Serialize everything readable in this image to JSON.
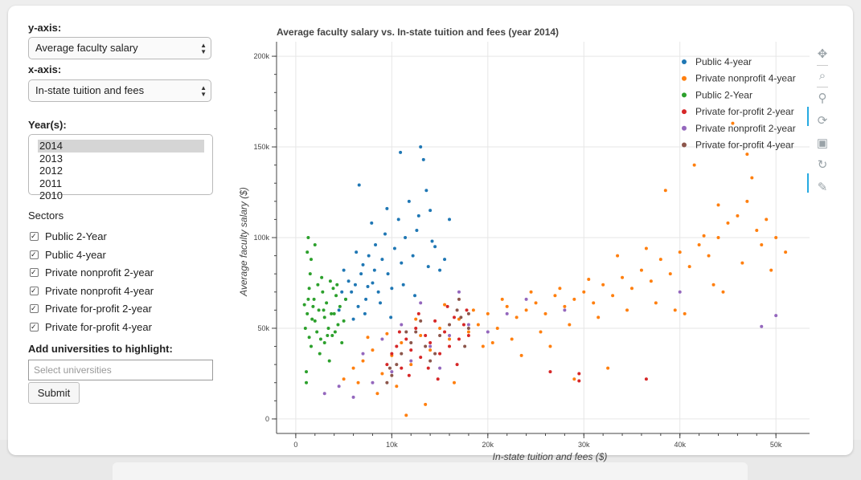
{
  "controls": {
    "yaxis_label": "y-axis:",
    "yaxis_value": "Average faculty salary",
    "xaxis_label": "x-axis:",
    "xaxis_value": "In-state tuition and fees",
    "years_label": "Year(s):",
    "years": [
      "2014",
      "2013",
      "2012",
      "2011",
      "2010"
    ],
    "years_selected": "2014",
    "sectors_label": "Sectors",
    "sectors": [
      "Public 2-Year",
      "Public 4-year",
      "Private nonprofit 2-year",
      "Private nonprofit 4-year",
      "Private for-profit 2-year",
      "Private for-profit 4-year"
    ],
    "highlight_label": "Add universities to highlight:",
    "highlight_placeholder": "Select universities",
    "submit_label": "Submit"
  },
  "toolbar": {
    "icons": [
      "pan-icon",
      "box-zoom-icon",
      "wheel-zoom-icon",
      "lasso-select-icon",
      "save-icon",
      "reset-icon",
      "hover-icon"
    ]
  },
  "chart_data": {
    "type": "scatter",
    "title": "Average faculty salary vs. In-state tuition and fees (year 2014)",
    "xlabel": "In-state tuition and fees ($)",
    "ylabel": "Average faculty salary ($)",
    "xlim": [
      -2000,
      53500
    ],
    "ylim": [
      -8000,
      208000
    ],
    "x_ticks": [
      0,
      10000,
      20000,
      30000,
      40000,
      50000
    ],
    "x_tick_labels": [
      "0",
      "10k",
      "20k",
      "30k",
      "40k",
      "50k"
    ],
    "y_ticks": [
      0,
      50000,
      100000,
      150000,
      200000
    ],
    "y_tick_labels": [
      "0",
      "50k",
      "100k",
      "150k",
      "200k"
    ],
    "grid": true,
    "legend_position": "top-right",
    "series": [
      {
        "name": "Public 4-year",
        "color": "#1f77b4",
        "points": [
          [
            4500,
            60000
          ],
          [
            5200,
            66000
          ],
          [
            5800,
            70000
          ],
          [
            6200,
            74000
          ],
          [
            6500,
            62000
          ],
          [
            6800,
            80000
          ],
          [
            7000,
            85000
          ],
          [
            7300,
            66000
          ],
          [
            7600,
            90000
          ],
          [
            8000,
            75000
          ],
          [
            8300,
            96000
          ],
          [
            8600,
            70000
          ],
          [
            9000,
            88000
          ],
          [
            9300,
            102000
          ],
          [
            9600,
            80000
          ],
          [
            10000,
            72000
          ],
          [
            10300,
            94000
          ],
          [
            10700,
            110000
          ],
          [
            11000,
            86000
          ],
          [
            11400,
            100000
          ],
          [
            11800,
            120000
          ],
          [
            12200,
            90000
          ],
          [
            12600,
            104000
          ],
          [
            13000,
            150000
          ],
          [
            13300,
            143000
          ],
          [
            13600,
            126000
          ],
          [
            14000,
            115000
          ],
          [
            14500,
            95000
          ],
          [
            15000,
            82000
          ],
          [
            6000,
            55000
          ],
          [
            7200,
            58000
          ],
          [
            5500,
            76000
          ],
          [
            8800,
            64000
          ],
          [
            9900,
            56000
          ],
          [
            11200,
            74000
          ],
          [
            12800,
            112000
          ],
          [
            6600,
            129000
          ],
          [
            10900,
            147000
          ],
          [
            14200,
            98000
          ],
          [
            7900,
            108000
          ],
          [
            5000,
            82000
          ],
          [
            4800,
            70000
          ],
          [
            9500,
            116000
          ],
          [
            12400,
            68000
          ],
          [
            15500,
            88000
          ],
          [
            16000,
            110000
          ],
          [
            13800,
            84000
          ],
          [
            8200,
            82000
          ],
          [
            6300,
            92000
          ],
          [
            7500,
            73000
          ]
        ]
      },
      {
        "name": "Private nonprofit 4-year",
        "color": "#ff7f0e",
        "points": [
          [
            5000,
            22000
          ],
          [
            6000,
            28000
          ],
          [
            7000,
            32000
          ],
          [
            8000,
            38000
          ],
          [
            9000,
            25000
          ],
          [
            10000,
            35000
          ],
          [
            11000,
            42000
          ],
          [
            12000,
            30000
          ],
          [
            13000,
            46000
          ],
          [
            14000,
            38000
          ],
          [
            15000,
            50000
          ],
          [
            16000,
            44000
          ],
          [
            17000,
            55000
          ],
          [
            18000,
            48000
          ],
          [
            19000,
            52000
          ],
          [
            20000,
            58000
          ],
          [
            21000,
            50000
          ],
          [
            22000,
            62000
          ],
          [
            23000,
            56000
          ],
          [
            24000,
            60000
          ],
          [
            25000,
            64000
          ],
          [
            26000,
            58000
          ],
          [
            27000,
            68000
          ],
          [
            28000,
            62000
          ],
          [
            29000,
            66000
          ],
          [
            30000,
            70000
          ],
          [
            31000,
            64000
          ],
          [
            32000,
            74000
          ],
          [
            33000,
            68000
          ],
          [
            34000,
            78000
          ],
          [
            35000,
            72000
          ],
          [
            36000,
            82000
          ],
          [
            37000,
            76000
          ],
          [
            38000,
            88000
          ],
          [
            39000,
            80000
          ],
          [
            40000,
            92000
          ],
          [
            41000,
            84000
          ],
          [
            42000,
            96000
          ],
          [
            43000,
            90000
          ],
          [
            44000,
            100000
          ],
          [
            45000,
            108000
          ],
          [
            46000,
            112000
          ],
          [
            47000,
            120000
          ],
          [
            47500,
            133000
          ],
          [
            48000,
            104000
          ],
          [
            48500,
            96000
          ],
          [
            49000,
            110000
          ],
          [
            50000,
            100000
          ],
          [
            51000,
            92000
          ],
          [
            38500,
            126000
          ],
          [
            41500,
            140000
          ],
          [
            45500,
            163000
          ],
          [
            47000,
            146000
          ],
          [
            44000,
            118000
          ],
          [
            42500,
            101000
          ],
          [
            36500,
            94000
          ],
          [
            33500,
            90000
          ],
          [
            30500,
            77000
          ],
          [
            27500,
            72000
          ],
          [
            24500,
            70000
          ],
          [
            21500,
            66000
          ],
          [
            18500,
            60000
          ],
          [
            15500,
            63000
          ],
          [
            12500,
            55000
          ],
          [
            9500,
            47000
          ],
          [
            7500,
            45000
          ],
          [
            6500,
            20000
          ],
          [
            8500,
            14000
          ],
          [
            10500,
            18000
          ],
          [
            11500,
            2000
          ],
          [
            13500,
            8000
          ],
          [
            16500,
            20000
          ],
          [
            19500,
            40000
          ],
          [
            22500,
            44000
          ],
          [
            25500,
            48000
          ],
          [
            28500,
            52000
          ],
          [
            31500,
            56000
          ],
          [
            34500,
            60000
          ],
          [
            37500,
            64000
          ],
          [
            40500,
            58000
          ],
          [
            43500,
            74000
          ],
          [
            46500,
            86000
          ],
          [
            49500,
            82000
          ],
          [
            29000,
            22000
          ],
          [
            32500,
            28000
          ],
          [
            23500,
            35000
          ],
          [
            20500,
            42000
          ],
          [
            26500,
            40000
          ],
          [
            39500,
            60000
          ],
          [
            44500,
            70000
          ]
        ]
      },
      {
        "name": "Public 2-Year",
        "color": "#2ca02c",
        "points": [
          [
            1000,
            50000
          ],
          [
            1200,
            58000
          ],
          [
            1300,
            66000
          ],
          [
            1400,
            72000
          ],
          [
            1500,
            80000
          ],
          [
            1600,
            88000
          ],
          [
            1800,
            62000
          ],
          [
            2000,
            54000
          ],
          [
            2200,
            48000
          ],
          [
            2400,
            60000
          ],
          [
            2600,
            44000
          ],
          [
            2800,
            70000
          ],
          [
            3000,
            56000
          ],
          [
            3200,
            64000
          ],
          [
            3400,
            50000
          ],
          [
            3600,
            76000
          ],
          [
            3800,
            46000
          ],
          [
            4000,
            58000
          ],
          [
            4200,
            68000
          ],
          [
            4400,
            52000
          ],
          [
            4600,
            62000
          ],
          [
            4800,
            42000
          ],
          [
            5000,
            54000
          ],
          [
            1100,
            26000
          ],
          [
            1100,
            20000
          ],
          [
            1300,
            100000
          ],
          [
            1200,
            92000
          ],
          [
            2000,
            96000
          ],
          [
            1600,
            40000
          ],
          [
            2500,
            36000
          ],
          [
            3000,
            42000
          ],
          [
            3500,
            32000
          ],
          [
            2700,
            78000
          ],
          [
            3900,
            72000
          ],
          [
            4300,
            74000
          ],
          [
            5200,
            66000
          ],
          [
            1900,
            66000
          ],
          [
            2300,
            74000
          ],
          [
            3300,
            46000
          ],
          [
            1400,
            45000
          ],
          [
            1700,
            55000
          ],
          [
            2900,
            60000
          ],
          [
            3700,
            58000
          ],
          [
            4100,
            48000
          ],
          [
            900,
            63000
          ]
        ]
      },
      {
        "name": "Private for-profit 2-year",
        "color": "#d62728",
        "points": [
          [
            9500,
            30000
          ],
          [
            10000,
            36000
          ],
          [
            10500,
            40000
          ],
          [
            11000,
            28000
          ],
          [
            11500,
            44000
          ],
          [
            12000,
            38000
          ],
          [
            12500,
            50000
          ],
          [
            13000,
            34000
          ],
          [
            13500,
            46000
          ],
          [
            14000,
            42000
          ],
          [
            14500,
            54000
          ],
          [
            15000,
            36000
          ],
          [
            15500,
            48000
          ],
          [
            16000,
            40000
          ],
          [
            16500,
            56000
          ],
          [
            17000,
            44000
          ],
          [
            17500,
            52000
          ],
          [
            18000,
            46000
          ],
          [
            12800,
            58000
          ],
          [
            13800,
            28000
          ],
          [
            15800,
            62000
          ],
          [
            10800,
            48000
          ],
          [
            14800,
            22000
          ],
          [
            16800,
            30000
          ],
          [
            11800,
            24000
          ],
          [
            17800,
            60000
          ],
          [
            26500,
            26000
          ],
          [
            29500,
            25000
          ],
          [
            29500,
            21000
          ],
          [
            36500,
            22000
          ]
        ]
      },
      {
        "name": "Private nonprofit 2-year",
        "color": "#9467bd",
        "points": [
          [
            3000,
            14000
          ],
          [
            4500,
            18000
          ],
          [
            6000,
            12000
          ],
          [
            8000,
            20000
          ],
          [
            10000,
            26000
          ],
          [
            12000,
            32000
          ],
          [
            14000,
            40000
          ],
          [
            16000,
            46000
          ],
          [
            18000,
            52000
          ],
          [
            20000,
            48000
          ],
          [
            22000,
            58000
          ],
          [
            24000,
            66000
          ],
          [
            28000,
            60000
          ],
          [
            40000,
            70000
          ],
          [
            48500,
            51000
          ],
          [
            50000,
            57000
          ],
          [
            17000,
            70000
          ],
          [
            15000,
            28000
          ],
          [
            13000,
            64000
          ],
          [
            11000,
            52000
          ],
          [
            9000,
            44000
          ],
          [
            7000,
            36000
          ]
        ]
      },
      {
        "name": "Private for-profit 4-year",
        "color": "#8c564b",
        "points": [
          [
            9500,
            20000
          ],
          [
            10000,
            24000
          ],
          [
            10500,
            30000
          ],
          [
            11000,
            36000
          ],
          [
            12000,
            42000
          ],
          [
            12500,
            48000
          ],
          [
            13000,
            54000
          ],
          [
            13500,
            40000
          ],
          [
            14000,
            32000
          ],
          [
            15000,
            46000
          ],
          [
            16000,
            52000
          ],
          [
            16800,
            60000
          ],
          [
            17000,
            66000
          ],
          [
            17200,
            56000
          ],
          [
            17600,
            40000
          ],
          [
            18000,
            50000
          ],
          [
            18000,
            58000
          ],
          [
            11500,
            48000
          ],
          [
            14500,
            36000
          ],
          [
            9800,
            28000
          ]
        ]
      }
    ]
  }
}
